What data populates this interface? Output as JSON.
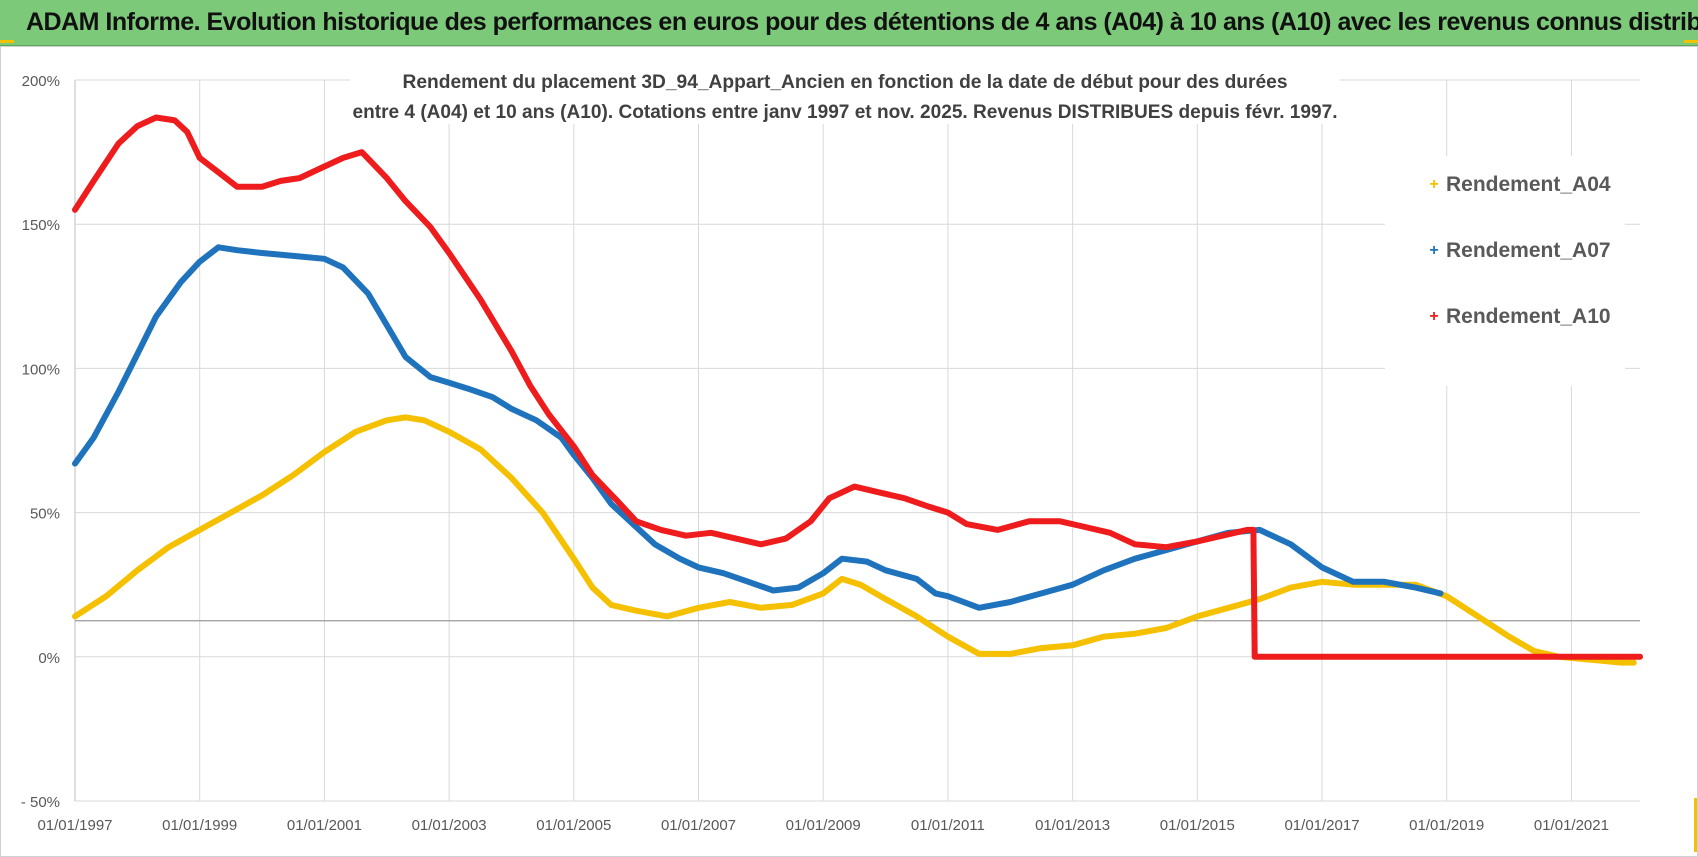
{
  "banner": {
    "title": "ADAM Informe. Evolution historique des performances en euros pour des détentions de 4 ans (A04) à 10 ans (A10) avec les revenus connus distribués"
  },
  "colors": {
    "banner_bg": "#7dc97a",
    "A04": "#f5c000",
    "A07": "#1f73bd",
    "A10": "#ee1c1c",
    "grid": "#d9d9d9",
    "axis_text": "#595959"
  },
  "chart_data": {
    "type": "line",
    "title": [
      "Rendement du placement 3D_94_Appart_Ancien en fonction de la date de début pour des durées",
      "entre 4 (A04) et 10 ans (A10). Cotations entre janv 1997 et nov. 2025. Revenus DISTRIBUES depuis févr. 1997."
    ],
    "xlabel": "",
    "ylabel": "",
    "xlim": [
      1997.0,
      2022.1
    ],
    "ylim": [
      -50,
      200
    ],
    "x_ticks": [
      1997,
      1999,
      2001,
      2003,
      2005,
      2007,
      2009,
      2011,
      2013,
      2015,
      2017,
      2019,
      2021
    ],
    "x_tick_labels": [
      "01/01/1997",
      "01/01/1999",
      "01/01/2001",
      "01/01/2003",
      "01/01/2005",
      "01/01/2007",
      "01/01/2009",
      "01/01/2011",
      "01/01/2013",
      "01/01/2015",
      "01/01/2017",
      "01/01/2019",
      "01/01/2021"
    ],
    "y_ticks": [
      -50,
      0,
      50,
      100,
      150,
      200
    ],
    "y_tick_labels": [
      "- 50%",
      "0%",
      "50%",
      "100%",
      "150%",
      "200%"
    ],
    "grid": true,
    "legend_position": "right",
    "series": [
      {
        "name": "Rendement_A04",
        "color": "#f5c000",
        "points": [
          [
            1997.0,
            14
          ],
          [
            1997.5,
            21
          ],
          [
            1998.0,
            30
          ],
          [
            1998.5,
            38
          ],
          [
            1999.0,
            44
          ],
          [
            1999.5,
            50
          ],
          [
            2000.0,
            56
          ],
          [
            2000.5,
            63
          ],
          [
            2001.0,
            71
          ],
          [
            2001.5,
            78
          ],
          [
            2002.0,
            82
          ],
          [
            2002.3,
            83
          ],
          [
            2002.6,
            82
          ],
          [
            2003.0,
            78
          ],
          [
            2003.5,
            72
          ],
          [
            2004.0,
            62
          ],
          [
            2004.5,
            50
          ],
          [
            2005.0,
            34
          ],
          [
            2005.3,
            24
          ],
          [
            2005.6,
            18
          ],
          [
            2006.0,
            16
          ],
          [
            2006.5,
            14
          ],
          [
            2007.0,
            17
          ],
          [
            2007.5,
            19
          ],
          [
            2008.0,
            17
          ],
          [
            2008.5,
            18
          ],
          [
            2009.0,
            22
          ],
          [
            2009.3,
            27
          ],
          [
            2009.6,
            25
          ],
          [
            2010.0,
            20
          ],
          [
            2010.5,
            14
          ],
          [
            2011.0,
            7
          ],
          [
            2011.5,
            1
          ],
          [
            2012.0,
            1
          ],
          [
            2012.5,
            3
          ],
          [
            2013.0,
            4
          ],
          [
            2013.5,
            7
          ],
          [
            2014.0,
            8
          ],
          [
            2014.5,
            10
          ],
          [
            2015.0,
            14
          ],
          [
            2015.5,
            17
          ],
          [
            2016.0,
            20
          ],
          [
            2016.5,
            24
          ],
          [
            2017.0,
            26
          ],
          [
            2017.5,
            25
          ],
          [
            2018.0,
            25
          ],
          [
            2018.5,
            25
          ],
          [
            2019.0,
            21
          ],
          [
            2019.5,
            14
          ],
          [
            2020.0,
            7
          ],
          [
            2020.4,
            2
          ],
          [
            2020.8,
            0
          ],
          [
            2021.3,
            -1
          ],
          [
            2021.8,
            -2
          ],
          [
            2022.0,
            -2
          ]
        ]
      },
      {
        "name": "Rendement_A07",
        "color": "#1f73bd",
        "points": [
          [
            1997.0,
            67
          ],
          [
            1997.3,
            76
          ],
          [
            1997.7,
            92
          ],
          [
            1998.0,
            105
          ],
          [
            1998.3,
            118
          ],
          [
            1998.7,
            130
          ],
          [
            1999.0,
            137
          ],
          [
            1999.3,
            142
          ],
          [
            1999.6,
            141
          ],
          [
            2000.0,
            140
          ],
          [
            2000.5,
            139
          ],
          [
            2001.0,
            138
          ],
          [
            2001.3,
            135
          ],
          [
            2001.7,
            126
          ],
          [
            2002.0,
            115
          ],
          [
            2002.3,
            104
          ],
          [
            2002.7,
            97
          ],
          [
            2003.0,
            95
          ],
          [
            2003.3,
            93
          ],
          [
            2003.7,
            90
          ],
          [
            2004.0,
            86
          ],
          [
            2004.4,
            82
          ],
          [
            2004.8,
            76
          ],
          [
            2005.0,
            70
          ],
          [
            2005.3,
            62
          ],
          [
            2005.6,
            53
          ],
          [
            2006.0,
            45
          ],
          [
            2006.3,
            39
          ],
          [
            2006.7,
            34
          ],
          [
            2007.0,
            31
          ],
          [
            2007.4,
            29
          ],
          [
            2007.8,
            26
          ],
          [
            2008.2,
            23
          ],
          [
            2008.6,
            24
          ],
          [
            2009.0,
            29
          ],
          [
            2009.3,
            34
          ],
          [
            2009.7,
            33
          ],
          [
            2010.0,
            30
          ],
          [
            2010.5,
            27
          ],
          [
            2010.8,
            22
          ],
          [
            2011.0,
            21
          ],
          [
            2011.5,
            17
          ],
          [
            2012.0,
            19
          ],
          [
            2012.5,
            22
          ],
          [
            2013.0,
            25
          ],
          [
            2013.5,
            30
          ],
          [
            2014.0,
            34
          ],
          [
            2014.5,
            37
          ],
          [
            2015.0,
            40
          ],
          [
            2015.5,
            43
          ],
          [
            2016.0,
            44
          ],
          [
            2016.5,
            39
          ],
          [
            2017.0,
            31
          ],
          [
            2017.5,
            26
          ],
          [
            2018.0,
            26
          ],
          [
            2018.5,
            24
          ],
          [
            2018.9,
            22
          ]
        ]
      },
      {
        "name": "Rendement_A10",
        "color": "#ee1c1c",
        "points": [
          [
            1997.0,
            155
          ],
          [
            1997.3,
            165
          ],
          [
            1997.7,
            178
          ],
          [
            1998.0,
            184
          ],
          [
            1998.3,
            187
          ],
          [
            1998.6,
            186
          ],
          [
            1998.8,
            182
          ],
          [
            1999.0,
            173
          ],
          [
            1999.3,
            168
          ],
          [
            1999.6,
            163
          ],
          [
            2000.0,
            163
          ],
          [
            2000.3,
            165
          ],
          [
            2000.6,
            166
          ],
          [
            2001.0,
            170
          ],
          [
            2001.3,
            173
          ],
          [
            2001.6,
            175
          ],
          [
            2002.0,
            166
          ],
          [
            2002.3,
            158
          ],
          [
            2002.7,
            149
          ],
          [
            2003.0,
            140
          ],
          [
            2003.5,
            124
          ],
          [
            2004.0,
            106
          ],
          [
            2004.3,
            94
          ],
          [
            2004.6,
            84
          ],
          [
            2005.0,
            73
          ],
          [
            2005.3,
            63
          ],
          [
            2005.7,
            54
          ],
          [
            2006.0,
            47
          ],
          [
            2006.4,
            44
          ],
          [
            2006.8,
            42
          ],
          [
            2007.2,
            43
          ],
          [
            2007.6,
            41
          ],
          [
            2008.0,
            39
          ],
          [
            2008.4,
            41
          ],
          [
            2008.8,
            47
          ],
          [
            2009.1,
            55
          ],
          [
            2009.5,
            59
          ],
          [
            2009.9,
            57
          ],
          [
            2010.3,
            55
          ],
          [
            2010.7,
            52
          ],
          [
            2011.0,
            50
          ],
          [
            2011.3,
            46
          ],
          [
            2011.8,
            44
          ],
          [
            2012.3,
            47
          ],
          [
            2012.8,
            47
          ],
          [
            2013.2,
            45
          ],
          [
            2013.6,
            43
          ],
          [
            2014.0,
            39
          ],
          [
            2014.5,
            38
          ],
          [
            2015.0,
            40
          ],
          [
            2015.4,
            42
          ],
          [
            2015.8,
            44
          ],
          [
            2015.9,
            44
          ],
          [
            2015.92,
            0
          ],
          [
            2022.1,
            0
          ]
        ]
      }
    ]
  }
}
